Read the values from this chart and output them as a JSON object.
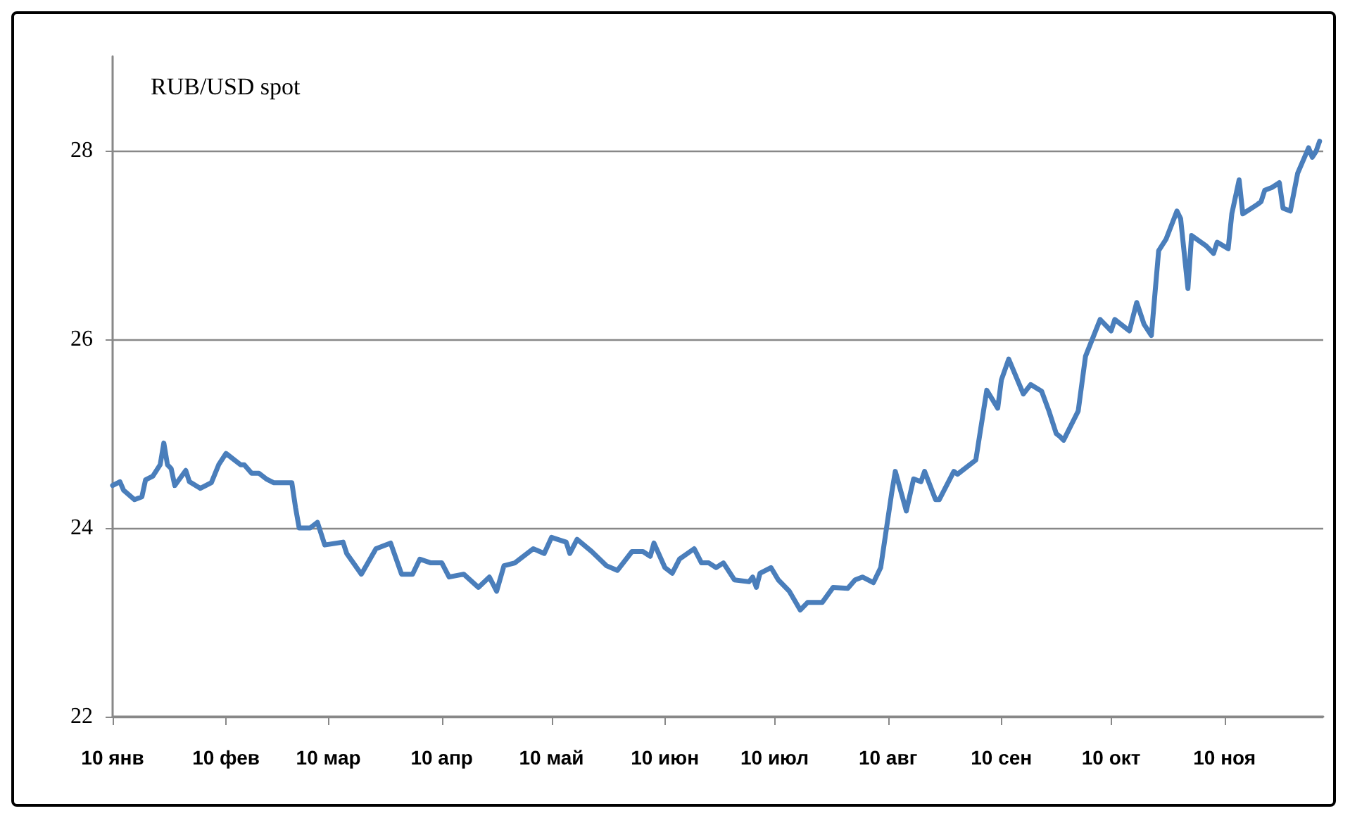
{
  "chart_data": {
    "type": "line",
    "title": "RUB/USD spot",
    "x": [
      "--01-10",
      "--01-12",
      "--01-13",
      "--01-16",
      "--01-18",
      "--01-19",
      "--01-21",
      "--01-23",
      "--01-24",
      "--01-25",
      "--01-26",
      "--01-27",
      "--01-30",
      "--01-31",
      "--02-03",
      "--02-06",
      "--02-08",
      "--02-10",
      "--02-14",
      "--02-15",
      "--02-17",
      "--02-19",
      "--02-21",
      "--02-23",
      "--02-28",
      "--03-01",
      "--03-02",
      "--03-05",
      "--03-07",
      "--03-09",
      "--03-14",
      "--03-15",
      "--03-19",
      "--03-23",
      "--03-27",
      "--03-30",
      "--04-02",
      "--04-04",
      "--04-07",
      "--04-10",
      "--04-12",
      "--04-16",
      "--04-20",
      "--04-23",
      "--04-25",
      "--04-27",
      "--04-30",
      "--05-05",
      "--05-08",
      "--05-10",
      "--05-14",
      "--05-15",
      "--05-17",
      "--05-21",
      "--05-25",
      "--05-28",
      "--06-01",
      "--06-04",
      "--06-06",
      "--06-07",
      "--06-10",
      "--06-12",
      "--06-14",
      "--06-18",
      "--06-20",
      "--06-22",
      "--06-24",
      "--06-26",
      "--06-29",
      "--07-03",
      "--07-04",
      "--07-05",
      "--07-06",
      "--07-09",
      "--07-11",
      "--07-14",
      "--07-17",
      "--07-19",
      "--07-23",
      "--07-26",
      "--07-30",
      "--08-01",
      "--08-03",
      "--08-06",
      "--08-08",
      "--08-11",
      "--08-12",
      "--08-15",
      "--08-17",
      "--08-19",
      "--08-20",
      "--08-23",
      "--08-24",
      "--08-28",
      "--08-29",
      "--09-03",
      "--09-06",
      "--09-09",
      "--09-10",
      "--09-12",
      "--09-16",
      "--09-18",
      "--09-21",
      "--09-23",
      "--09-25",
      "--09-26",
      "--09-27",
      "--10-01",
      "--10-03",
      "--10-07",
      "--10-10",
      "--10-11",
      "--10-15",
      "--10-17",
      "--10-19",
      "--10-21",
      "--10-23",
      "--10-25",
      "--10-28",
      "--10-29",
      "--10-31",
      "--11-01",
      "--11-05",
      "--11-07",
      "--11-08",
      "--11-11",
      "--11-12",
      "--11-14",
      "--11-15",
      "--11-19",
      "--11-20",
      "--11-21",
      "--11-23",
      "--11-25",
      "--11-26",
      "--11-28",
      "--11-30",
      "--12-03",
      "--12-04",
      "--12-05",
      "--12-06"
    ],
    "series": [
      {
        "color": "#4a7ebb",
        "values": [
          24.45,
          24.49,
          24.4,
          24.3,
          24.33,
          24.51,
          24.55,
          24.67,
          24.9,
          24.67,
          24.63,
          24.45,
          24.61,
          24.49,
          24.42,
          24.48,
          24.67,
          24.79,
          24.67,
          24.67,
          24.58,
          24.58,
          24.52,
          24.48,
          24.48,
          24.22,
          24.0,
          24.0,
          24.06,
          23.82,
          23.85,
          23.73,
          23.51,
          23.78,
          23.84,
          23.51,
          23.51,
          23.67,
          23.63,
          23.63,
          23.48,
          23.51,
          23.37,
          23.48,
          23.33,
          23.6,
          23.63,
          23.78,
          23.73,
          23.9,
          23.85,
          23.73,
          23.88,
          23.75,
          23.6,
          23.55,
          23.75,
          23.75,
          23.7,
          23.84,
          23.58,
          23.52,
          23.67,
          23.78,
          23.63,
          23.63,
          23.58,
          23.63,
          23.45,
          23.43,
          23.48,
          23.37,
          23.52,
          23.58,
          23.45,
          23.33,
          23.13,
          23.21,
          23.21,
          23.37,
          23.36,
          23.45,
          23.48,
          23.42,
          23.58,
          24.37,
          24.6,
          24.18,
          24.52,
          24.49,
          24.6,
          24.3,
          24.3,
          24.6,
          24.57,
          24.72,
          25.46,
          25.27,
          25.57,
          25.79,
          25.42,
          25.52,
          25.45,
          25.24,
          25.0,
          24.97,
          24.93,
          25.24,
          25.82,
          26.21,
          26.09,
          26.21,
          26.09,
          26.39,
          26.16,
          26.04,
          26.94,
          27.06,
          27.36,
          27.28,
          26.54,
          27.1,
          26.99,
          26.91,
          27.03,
          26.96,
          27.33,
          27.69,
          27.33,
          27.43,
          27.46,
          27.58,
          27.61,
          27.66,
          27.39,
          27.36,
          27.76,
          28.03,
          27.93,
          27.99,
          28.1
        ]
      }
    ],
    "xlim": [
      "--01-10",
      "--12-07"
    ],
    "xticks": [
      {
        "value": "--01-10",
        "label": "10 янв"
      },
      {
        "value": "--02-10",
        "label": "10 фев"
      },
      {
        "value": "--03-10",
        "label": "10 мар"
      },
      {
        "value": "--04-10",
        "label": "10 апр"
      },
      {
        "value": "--05-10",
        "label": "10 май"
      },
      {
        "value": "--06-10",
        "label": "10 июн"
      },
      {
        "value": "--07-10",
        "label": "10 июл"
      },
      {
        "value": "--08-10",
        "label": "10 авг"
      },
      {
        "value": "--09-10",
        "label": "10 сен"
      },
      {
        "value": "--10-10",
        "label": "10 окт"
      },
      {
        "value": "--11-10",
        "label": "10 ноя"
      }
    ],
    "ylim": [
      22,
      29
    ],
    "yticks": [
      22,
      24,
      26,
      28
    ],
    "grid": "y",
    "marker": "none",
    "line_style": "solid"
  }
}
